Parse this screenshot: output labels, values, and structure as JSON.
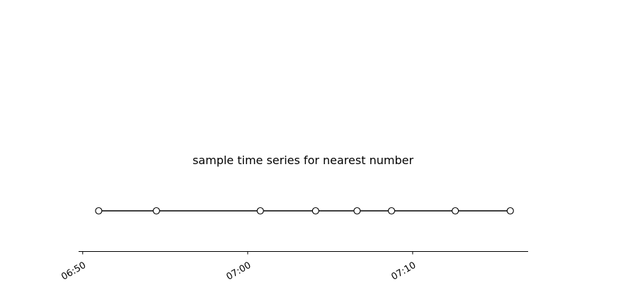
{
  "chart_data": {
    "type": "line",
    "title": "sample time series for nearest number",
    "xlabel": "",
    "ylabel": "",
    "x_axis_type": "time",
    "x_ticks": [
      "06:50",
      "07:00",
      "07:10"
    ],
    "xlim": [
      "06:49:45",
      "07:17:00"
    ],
    "series": [
      {
        "x": [
          "06:50:58",
          "06:54:28",
          "07:00:46",
          "07:04:07",
          "07:06:38",
          "07:08:43",
          "07:12:35",
          "07:15:55"
        ],
        "y": [
          1,
          1,
          1,
          1,
          1,
          1,
          1,
          1
        ]
      }
    ],
    "grid": false,
    "legend": "none",
    "colors": {
      "line": "#000000",
      "marker_fill": "#ffffff",
      "marker_edge": "#000000",
      "axis": "#000000"
    }
  }
}
